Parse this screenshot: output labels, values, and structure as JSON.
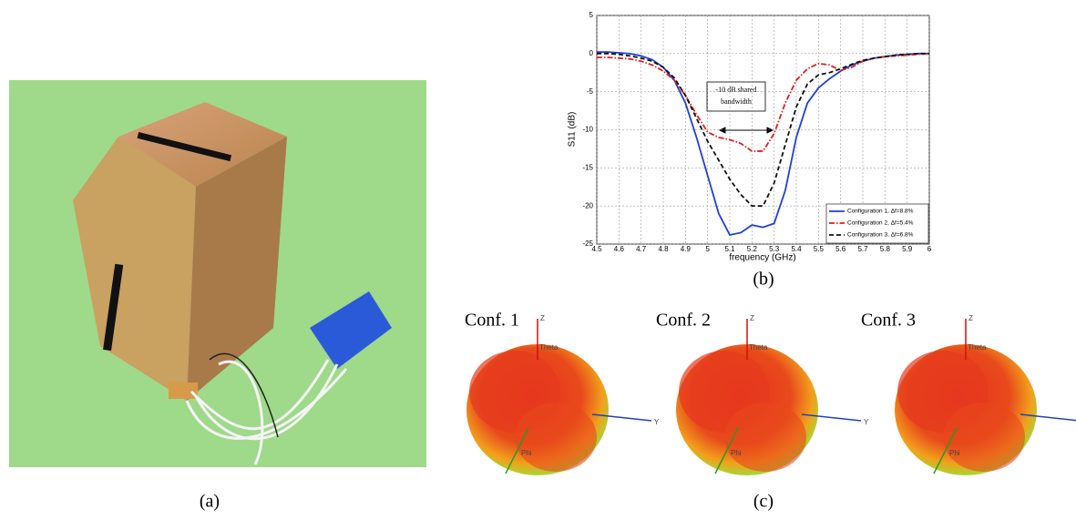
{
  "chart_data": {
    "type": "line",
    "xlabel": "frequency (GHz)",
    "ylabel": "S11 (dB)",
    "annotation": [
      "-10 dB shared",
      "bandwidth"
    ],
    "x": [
      4.5,
      4.55,
      4.6,
      4.65,
      4.7,
      4.75,
      4.8,
      4.85,
      4.9,
      4.95,
      5.0,
      5.05,
      5.1,
      5.15,
      5.2,
      5.25,
      5.3,
      5.35,
      5.4,
      5.45,
      5.5,
      5.55,
      5.6,
      5.65,
      5.7,
      5.75,
      5.8,
      5.85,
      5.9,
      5.95,
      6.0
    ],
    "series": [
      {
        "name": "Configuration 1, Δf=8.8%",
        "color": "#1f3fd8",
        "style": "solid",
        "values": [
          0.2,
          0.2,
          0.1,
          0,
          -0.3,
          -0.8,
          -1.8,
          -3.5,
          -6.5,
          -11,
          -16,
          -21,
          -23.8,
          -23.5,
          -22.5,
          -22.8,
          -22.3,
          -18,
          -11,
          -6.5,
          -4.5,
          -3.3,
          -2.3,
          -1.5,
          -1,
          -0.6,
          -0.4,
          -0.2,
          -0.1,
          0,
          0
        ]
      },
      {
        "name": "Configuration 2, Δf=5.4%",
        "color": "#e0201c",
        "style": "dashdot",
        "values": [
          -0.5,
          -0.5,
          -0.6,
          -0.7,
          -1,
          -1.5,
          -2.3,
          -3.5,
          -5.5,
          -8,
          -10.3,
          -11,
          -11.3,
          -11.8,
          -12.8,
          -12.8,
          -10.5,
          -6.5,
          -3.5,
          -2,
          -1.3,
          -1.5,
          -2.2,
          -1.8,
          -1,
          -0.6,
          -0.4,
          -0.3,
          -0.2,
          -0.1,
          0
        ]
      },
      {
        "name": "Configuration 3, Δf=6.8%",
        "color": "#111111",
        "style": "dashed",
        "values": [
          0,
          0,
          -0.1,
          -0.3,
          -0.6,
          -1,
          -1.8,
          -3.2,
          -5.5,
          -8.5,
          -11.5,
          -14,
          -16.5,
          -18.5,
          -20,
          -20,
          -17,
          -12,
          -7,
          -4,
          -2.8,
          -2.5,
          -2,
          -1.4,
          -0.9,
          -0.6,
          -0.4,
          -0.2,
          -0.1,
          0,
          0
        ]
      }
    ],
    "xlim": [
      4.5,
      6
    ],
    "xticks": [
      4.5,
      4.6,
      4.7,
      4.8,
      4.9,
      5,
      5.1,
      5.2,
      5.3,
      5.4,
      5.5,
      5.6,
      5.7,
      5.8,
      5.9,
      6
    ],
    "ylim": [
      -25,
      5
    ],
    "yticks": [
      -25,
      -20,
      -15,
      -10,
      -5,
      0,
      5
    ],
    "grid": true,
    "legend": "lower right"
  },
  "panels": {
    "a": {
      "caption": "(a)"
    },
    "b": {
      "caption": "(b)"
    },
    "c": {
      "caption": "(c)",
      "patterns": [
        {
          "title": "Conf. 1",
          "axes": {
            "z": "Z",
            "theta": "Theta",
            "y": "Y",
            "phi": "Phi"
          }
        },
        {
          "title": "Conf. 2",
          "axes": {
            "z": "Z",
            "theta": "Theta",
            "y": "Y",
            "phi": "Phi"
          }
        },
        {
          "title": "Conf. 3",
          "axes": {
            "z": "Z",
            "theta": "Theta",
            "phi": "Phi"
          }
        }
      ]
    }
  }
}
